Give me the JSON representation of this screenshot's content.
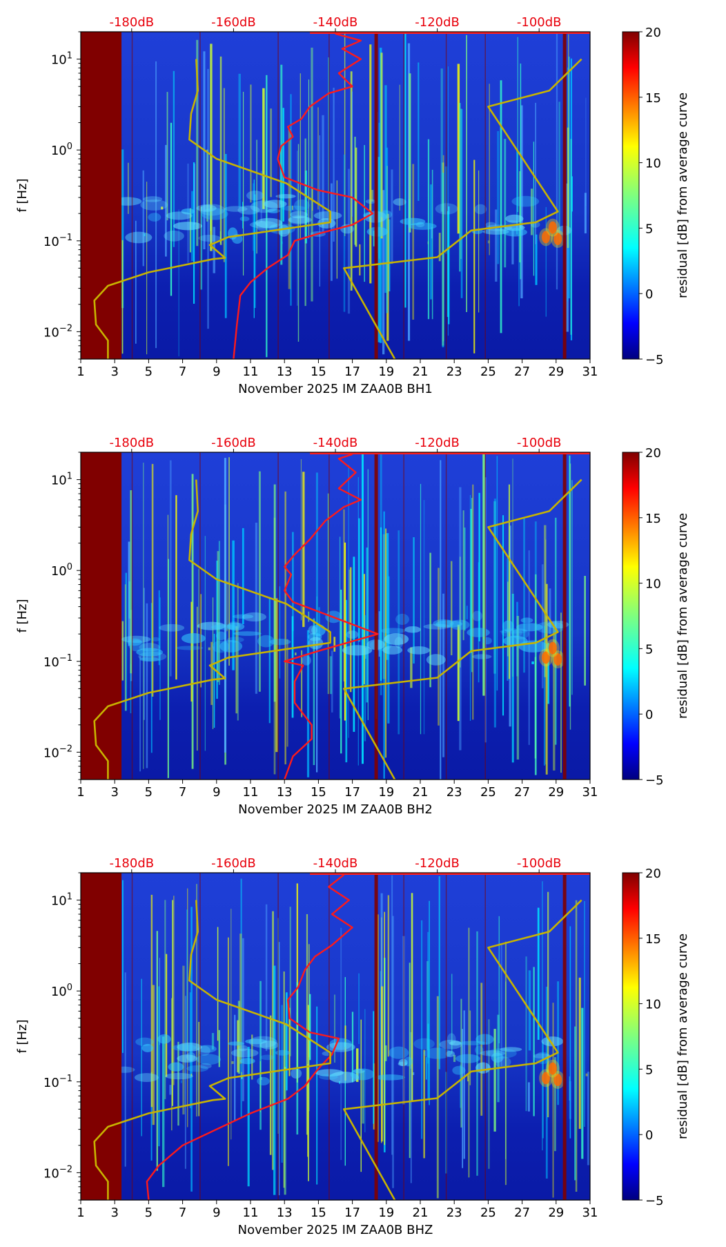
{
  "colors": {
    "red_curve": "#ff1a1a",
    "yellow_curve": "#c8b400",
    "top_labels": "#e8000b",
    "outage": "#800000"
  },
  "shared": {
    "x_ticks": [
      "1",
      "3",
      "5",
      "7",
      "9",
      "11",
      "13",
      "15",
      "17",
      "19",
      "21",
      "23",
      "25",
      "27",
      "29",
      "31"
    ],
    "y_ticks": [
      {
        "value": 0.01,
        "base": "10",
        "exp": "−2"
      },
      {
        "value": 0.1,
        "base": "10",
        "exp": "−1"
      },
      {
        "value": 1,
        "base": "10",
        "exp": "0"
      },
      {
        "value": 10,
        "base": "10",
        "exp": "1"
      }
    ],
    "top_ticks": [
      {
        "label": "-180dB",
        "x": 4
      },
      {
        "label": "-160dB",
        "x": 10
      },
      {
        "label": "-140dB",
        "x": 16
      },
      {
        "label": "-120dB",
        "x": 22
      },
      {
        "label": "-100dB",
        "x": 28
      }
    ],
    "ylabel": "f [Hz]",
    "cbar_label": "residual [dB] from average curve",
    "cbar_ticks": [
      "20",
      "15",
      "10",
      "5",
      "0",
      "−5"
    ]
  },
  "chart_data": [
    {
      "type": "heatmap",
      "title": "",
      "xlabel": "November 2025 IM ZAA0B  BH1",
      "ylabel": "f [Hz]",
      "xlim": [
        1,
        31
      ],
      "ylim": [
        0.005,
        20
      ],
      "colorbar": {
        "label": "residual [dB] from average curve",
        "range": [
          -5,
          20
        ]
      },
      "outage_bands": [
        [
          1,
          3.4
        ]
      ],
      "series": [
        {
          "name": "median PSD",
          "color": "red",
          "points": [
            [
              10,
              0.005
            ],
            [
              10.2,
              0.012
            ],
            [
              10.4,
              0.025
            ],
            [
              11,
              0.035
            ],
            [
              12,
              0.05
            ],
            [
              13.2,
              0.07
            ],
            [
              13.6,
              0.1
            ],
            [
              15,
              0.12
            ],
            [
              17,
              0.15
            ],
            [
              18.2,
              0.2
            ],
            [
              17,
              0.3
            ],
            [
              15,
              0.36
            ],
            [
              13,
              0.5
            ],
            [
              12.6,
              0.8
            ],
            [
              12.8,
              1.1
            ],
            [
              13.5,
              1.4
            ],
            [
              13.2,
              1.8
            ],
            [
              14,
              2.2
            ],
            [
              14.5,
              3
            ],
            [
              15.6,
              4.2
            ],
            [
              17,
              5
            ],
            [
              16.2,
              7
            ],
            [
              17.5,
              10
            ],
            [
              16.4,
              13
            ],
            [
              17.5,
              16
            ],
            [
              16,
              19
            ]
          ]
        },
        {
          "name": "yellow model curve",
          "color": "yellow",
          "points": [
            [
              2.6,
              0.005
            ],
            [
              2.6,
              0.008
            ],
            [
              1.9,
              0.012
            ],
            [
              1.8,
              0.022
            ],
            [
              2.6,
              0.032
            ],
            [
              5,
              0.045
            ],
            [
              8.8,
              0.063
            ],
            [
              9.5,
              0.065
            ],
            [
              8.6,
              0.09
            ],
            [
              9.7,
              0.11
            ],
            [
              15.7,
              0.16
            ],
            [
              15.7,
              0.21
            ],
            [
              13.1,
              0.43
            ],
            [
              9,
              0.8
            ],
            [
              7.4,
              1.3
            ],
            [
              7.5,
              2.5
            ],
            [
              7.9,
              4.5
            ],
            [
              7.8,
              10
            ]
          ]
        },
        {
          "name": "yellow model curve 2",
          "color": "yellow",
          "points": [
            [
              19.5,
              0.005
            ],
            [
              16.5,
              0.05
            ],
            [
              22,
              0.066
            ],
            [
              24,
              0.13
            ],
            [
              27.8,
              0.16
            ],
            [
              29.1,
              0.21
            ],
            [
              25,
              3
            ],
            [
              28.6,
              4.5
            ],
            [
              30.5,
              10
            ]
          ]
        }
      ]
    },
    {
      "type": "heatmap",
      "title": "",
      "xlabel": "November 2025 IM ZAA0B  BH2",
      "ylabel": "f [Hz]",
      "xlim": [
        1,
        31
      ],
      "ylim": [
        0.005,
        20
      ],
      "colorbar": {
        "label": "residual [dB] from average curve",
        "range": [
          -5,
          20
        ]
      },
      "outage_bands": [
        [
          1,
          3.4
        ]
      ],
      "series": [
        {
          "name": "median PSD",
          "color": "red",
          "points": [
            [
              13,
              0.005
            ],
            [
              13.5,
              0.009
            ],
            [
              14.6,
              0.014
            ],
            [
              14.6,
              0.02
            ],
            [
              13.6,
              0.035
            ],
            [
              13.6,
              0.06
            ],
            [
              14.1,
              0.09
            ],
            [
              13,
              0.1
            ],
            [
              15,
              0.13
            ],
            [
              18.5,
              0.2
            ],
            [
              16,
              0.3
            ],
            [
              13.5,
              0.45
            ],
            [
              13,
              0.6
            ],
            [
              13.4,
              0.9
            ],
            [
              13,
              1.1
            ],
            [
              13.6,
              1.5
            ],
            [
              14.5,
              2.2
            ],
            [
              15.4,
              3.5
            ],
            [
              16.5,
              5
            ],
            [
              17.5,
              6
            ],
            [
              16.2,
              8
            ],
            [
              17.2,
              12
            ],
            [
              16.2,
              17
            ],
            [
              17,
              19
            ]
          ]
        },
        {
          "name": "yellow model curve",
          "color": "yellow",
          "points": [
            [
              2.6,
              0.005
            ],
            [
              2.6,
              0.008
            ],
            [
              1.9,
              0.012
            ],
            [
              1.8,
              0.022
            ],
            [
              2.6,
              0.032
            ],
            [
              5,
              0.045
            ],
            [
              8.8,
              0.063
            ],
            [
              9.5,
              0.065
            ],
            [
              8.6,
              0.09
            ],
            [
              9.7,
              0.11
            ],
            [
              15.7,
              0.16
            ],
            [
              15.7,
              0.21
            ],
            [
              13.1,
              0.43
            ],
            [
              9,
              0.8
            ],
            [
              7.4,
              1.3
            ],
            [
              7.5,
              2.5
            ],
            [
              7.9,
              4.5
            ],
            [
              7.8,
              10
            ]
          ]
        },
        {
          "name": "yellow model curve 2",
          "color": "yellow",
          "points": [
            [
              19.5,
              0.005
            ],
            [
              16.5,
              0.05
            ],
            [
              22,
              0.066
            ],
            [
              24,
              0.13
            ],
            [
              27.8,
              0.16
            ],
            [
              29.1,
              0.21
            ],
            [
              25,
              3
            ],
            [
              28.6,
              4.5
            ],
            [
              30.5,
              10
            ]
          ]
        }
      ]
    },
    {
      "type": "heatmap",
      "title": "",
      "xlabel": "November 2025 IM ZAA0B  BHZ",
      "ylabel": "f [Hz]",
      "xlim": [
        1,
        31
      ],
      "ylim": [
        0.005,
        20
      ],
      "colorbar": {
        "label": "residual [dB] from average curve",
        "range": [
          -5,
          20
        ]
      },
      "outage_bands": [
        [
          1,
          3.4
        ]
      ],
      "series": [
        {
          "name": "median PSD",
          "color": "red",
          "points": [
            [
              5,
              0.005
            ],
            [
              4.9,
              0.008
            ],
            [
              5.6,
              0.012
            ],
            [
              7,
              0.02
            ],
            [
              9,
              0.03
            ],
            [
              11,
              0.045
            ],
            [
              13.2,
              0.065
            ],
            [
              14.2,
              0.09
            ],
            [
              15,
              0.14
            ],
            [
              15.8,
              0.2
            ],
            [
              16.2,
              0.3
            ],
            [
              14.5,
              0.35
            ],
            [
              13.3,
              0.5
            ],
            [
              13.2,
              0.8
            ],
            [
              13.8,
              1.1
            ],
            [
              14.2,
              1.7
            ],
            [
              14.8,
              2.4
            ],
            [
              15.8,
              3.2
            ],
            [
              17,
              5
            ],
            [
              15.8,
              7
            ],
            [
              16.8,
              10
            ],
            [
              15.6,
              14
            ],
            [
              16.5,
              19
            ]
          ]
        },
        {
          "name": "yellow model curve",
          "color": "yellow",
          "points": [
            [
              2.6,
              0.005
            ],
            [
              2.6,
              0.008
            ],
            [
              1.9,
              0.012
            ],
            [
              1.8,
              0.022
            ],
            [
              2.6,
              0.032
            ],
            [
              5,
              0.045
            ],
            [
              8.8,
              0.063
            ],
            [
              9.5,
              0.065
            ],
            [
              8.6,
              0.09
            ],
            [
              9.7,
              0.11
            ],
            [
              15.7,
              0.16
            ],
            [
              15.7,
              0.21
            ],
            [
              13.1,
              0.43
            ],
            [
              9,
              0.8
            ],
            [
              7.4,
              1.3
            ],
            [
              7.5,
              2.5
            ],
            [
              7.9,
              4.5
            ],
            [
              7.8,
              10
            ]
          ]
        },
        {
          "name": "yellow model curve 2",
          "color": "yellow",
          "points": [
            [
              19.5,
              0.005
            ],
            [
              16.5,
              0.05
            ],
            [
              22,
              0.066
            ],
            [
              24,
              0.13
            ],
            [
              27.8,
              0.16
            ],
            [
              29.1,
              0.21
            ],
            [
              25,
              3
            ],
            [
              28.6,
              4.5
            ],
            [
              30.5,
              10
            ]
          ]
        }
      ]
    }
  ]
}
